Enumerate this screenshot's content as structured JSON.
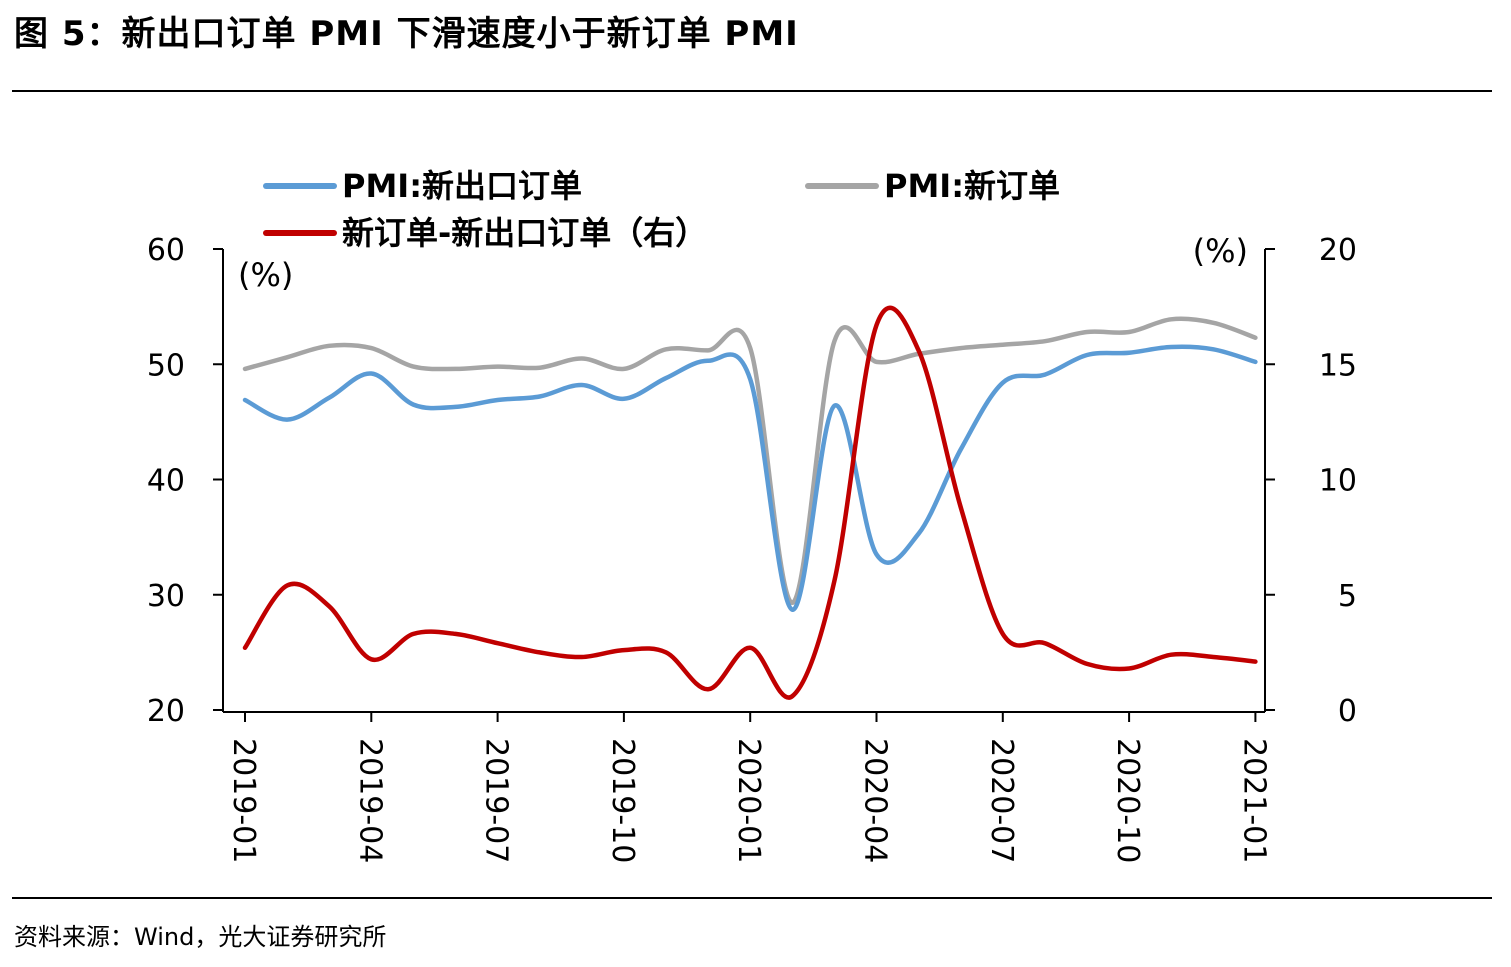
{
  "header": {
    "title": "图 5：新出口订单 PMI 下滑速度小于新订单 PMI"
  },
  "footer": {
    "source": "资料来源：Wind，光大证券研究所"
  },
  "chart_data": {
    "type": "line",
    "title": "新出口订单 PMI 下滑速度小于新订单 PMI",
    "y_left": {
      "label": "(%)",
      "range": [
        20,
        60
      ],
      "ticks": [
        "60",
        "50",
        "40",
        "30",
        "20"
      ]
    },
    "y_right": {
      "label": "(%)",
      "range": [
        0,
        20
      ],
      "ticks": [
        "20",
        "15",
        "10",
        "5",
        "0"
      ]
    },
    "x_tick_labels": [
      "2019-01",
      "2019-04",
      "2019-07",
      "2019-10",
      "2020-01",
      "2020-04",
      "2020-07",
      "2020-10",
      "2021-01"
    ],
    "x": [
      "2019-01",
      "2019-02",
      "2019-03",
      "2019-04",
      "2019-05",
      "2019-06",
      "2019-07",
      "2019-08",
      "2019-09",
      "2019-10",
      "2019-11",
      "2019-12",
      "2020-01",
      "2020-02",
      "2020-03",
      "2020-04",
      "2020-05",
      "2020-06",
      "2020-07",
      "2020-08",
      "2020-09",
      "2020-10",
      "2020-11",
      "2020-12",
      "2021-01"
    ],
    "series": [
      {
        "name": "PMI:新出口订单",
        "axis": "left",
        "color": "#5b9bd5",
        "values": [
          46.9,
          45.2,
          47.1,
          49.2,
          46.5,
          46.3,
          46.9,
          47.2,
          48.2,
          47.0,
          48.8,
          50.3,
          48.7,
          28.7,
          46.4,
          33.5,
          35.3,
          42.6,
          48.4,
          49.1,
          50.8,
          51.0,
          51.5,
          51.3,
          50.2
        ]
      },
      {
        "name": "PMI:新订单",
        "axis": "left",
        "color": "#a5a5a5",
        "values": [
          49.6,
          50.6,
          51.6,
          51.4,
          49.8,
          49.6,
          49.8,
          49.7,
          50.5,
          49.6,
          51.3,
          51.2,
          51.4,
          29.3,
          52.0,
          50.2,
          50.9,
          51.4,
          51.7,
          52.0,
          52.8,
          52.8,
          53.9,
          53.6,
          52.3
        ]
      },
      {
        "name": "新订单-新出口订单（右）",
        "axis": "right",
        "color": "#c00000",
        "values": [
          2.7,
          5.4,
          4.5,
          2.2,
          3.3,
          3.3,
          2.9,
          2.5,
          2.3,
          2.6,
          2.5,
          0.9,
          2.7,
          0.6,
          5.6,
          16.7,
          15.6,
          8.8,
          3.3,
          2.9,
          2.0,
          1.8,
          2.4,
          2.3,
          2.1
        ]
      }
    ],
    "legend": [
      "PMI:新出口订单",
      "PMI:新订单",
      "新订单-新出口订单（右）"
    ],
    "legend_position": "top"
  }
}
